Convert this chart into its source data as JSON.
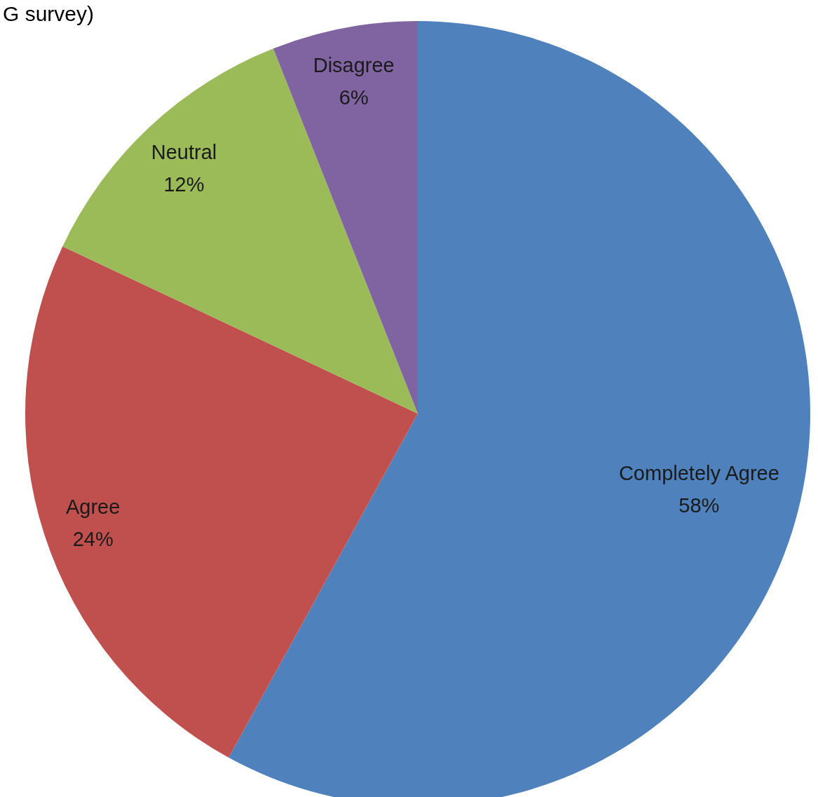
{
  "chart_data": {
    "type": "pie",
    "title": "G survey)",
    "categories": [
      "Completely Agree",
      "Agree",
      "Neutral",
      "Disagree"
    ],
    "values": [
      58,
      24,
      12,
      6
    ],
    "value_labels": [
      "58%",
      "24%",
      "12%",
      "6%"
    ],
    "colors": [
      "#4f81bd",
      "#c0504d",
      "#9bbb59",
      "#8064a2"
    ]
  }
}
